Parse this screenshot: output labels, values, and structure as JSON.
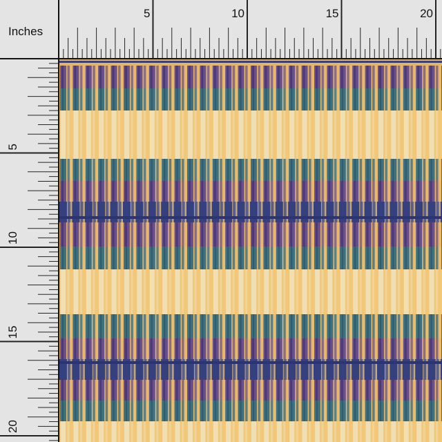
{
  "ruler": {
    "unit_label": "Inches",
    "top_labels": [
      "5",
      "10",
      "15",
      "20"
    ],
    "left_labels": [
      "5",
      "10",
      "15",
      "20"
    ]
  }
}
